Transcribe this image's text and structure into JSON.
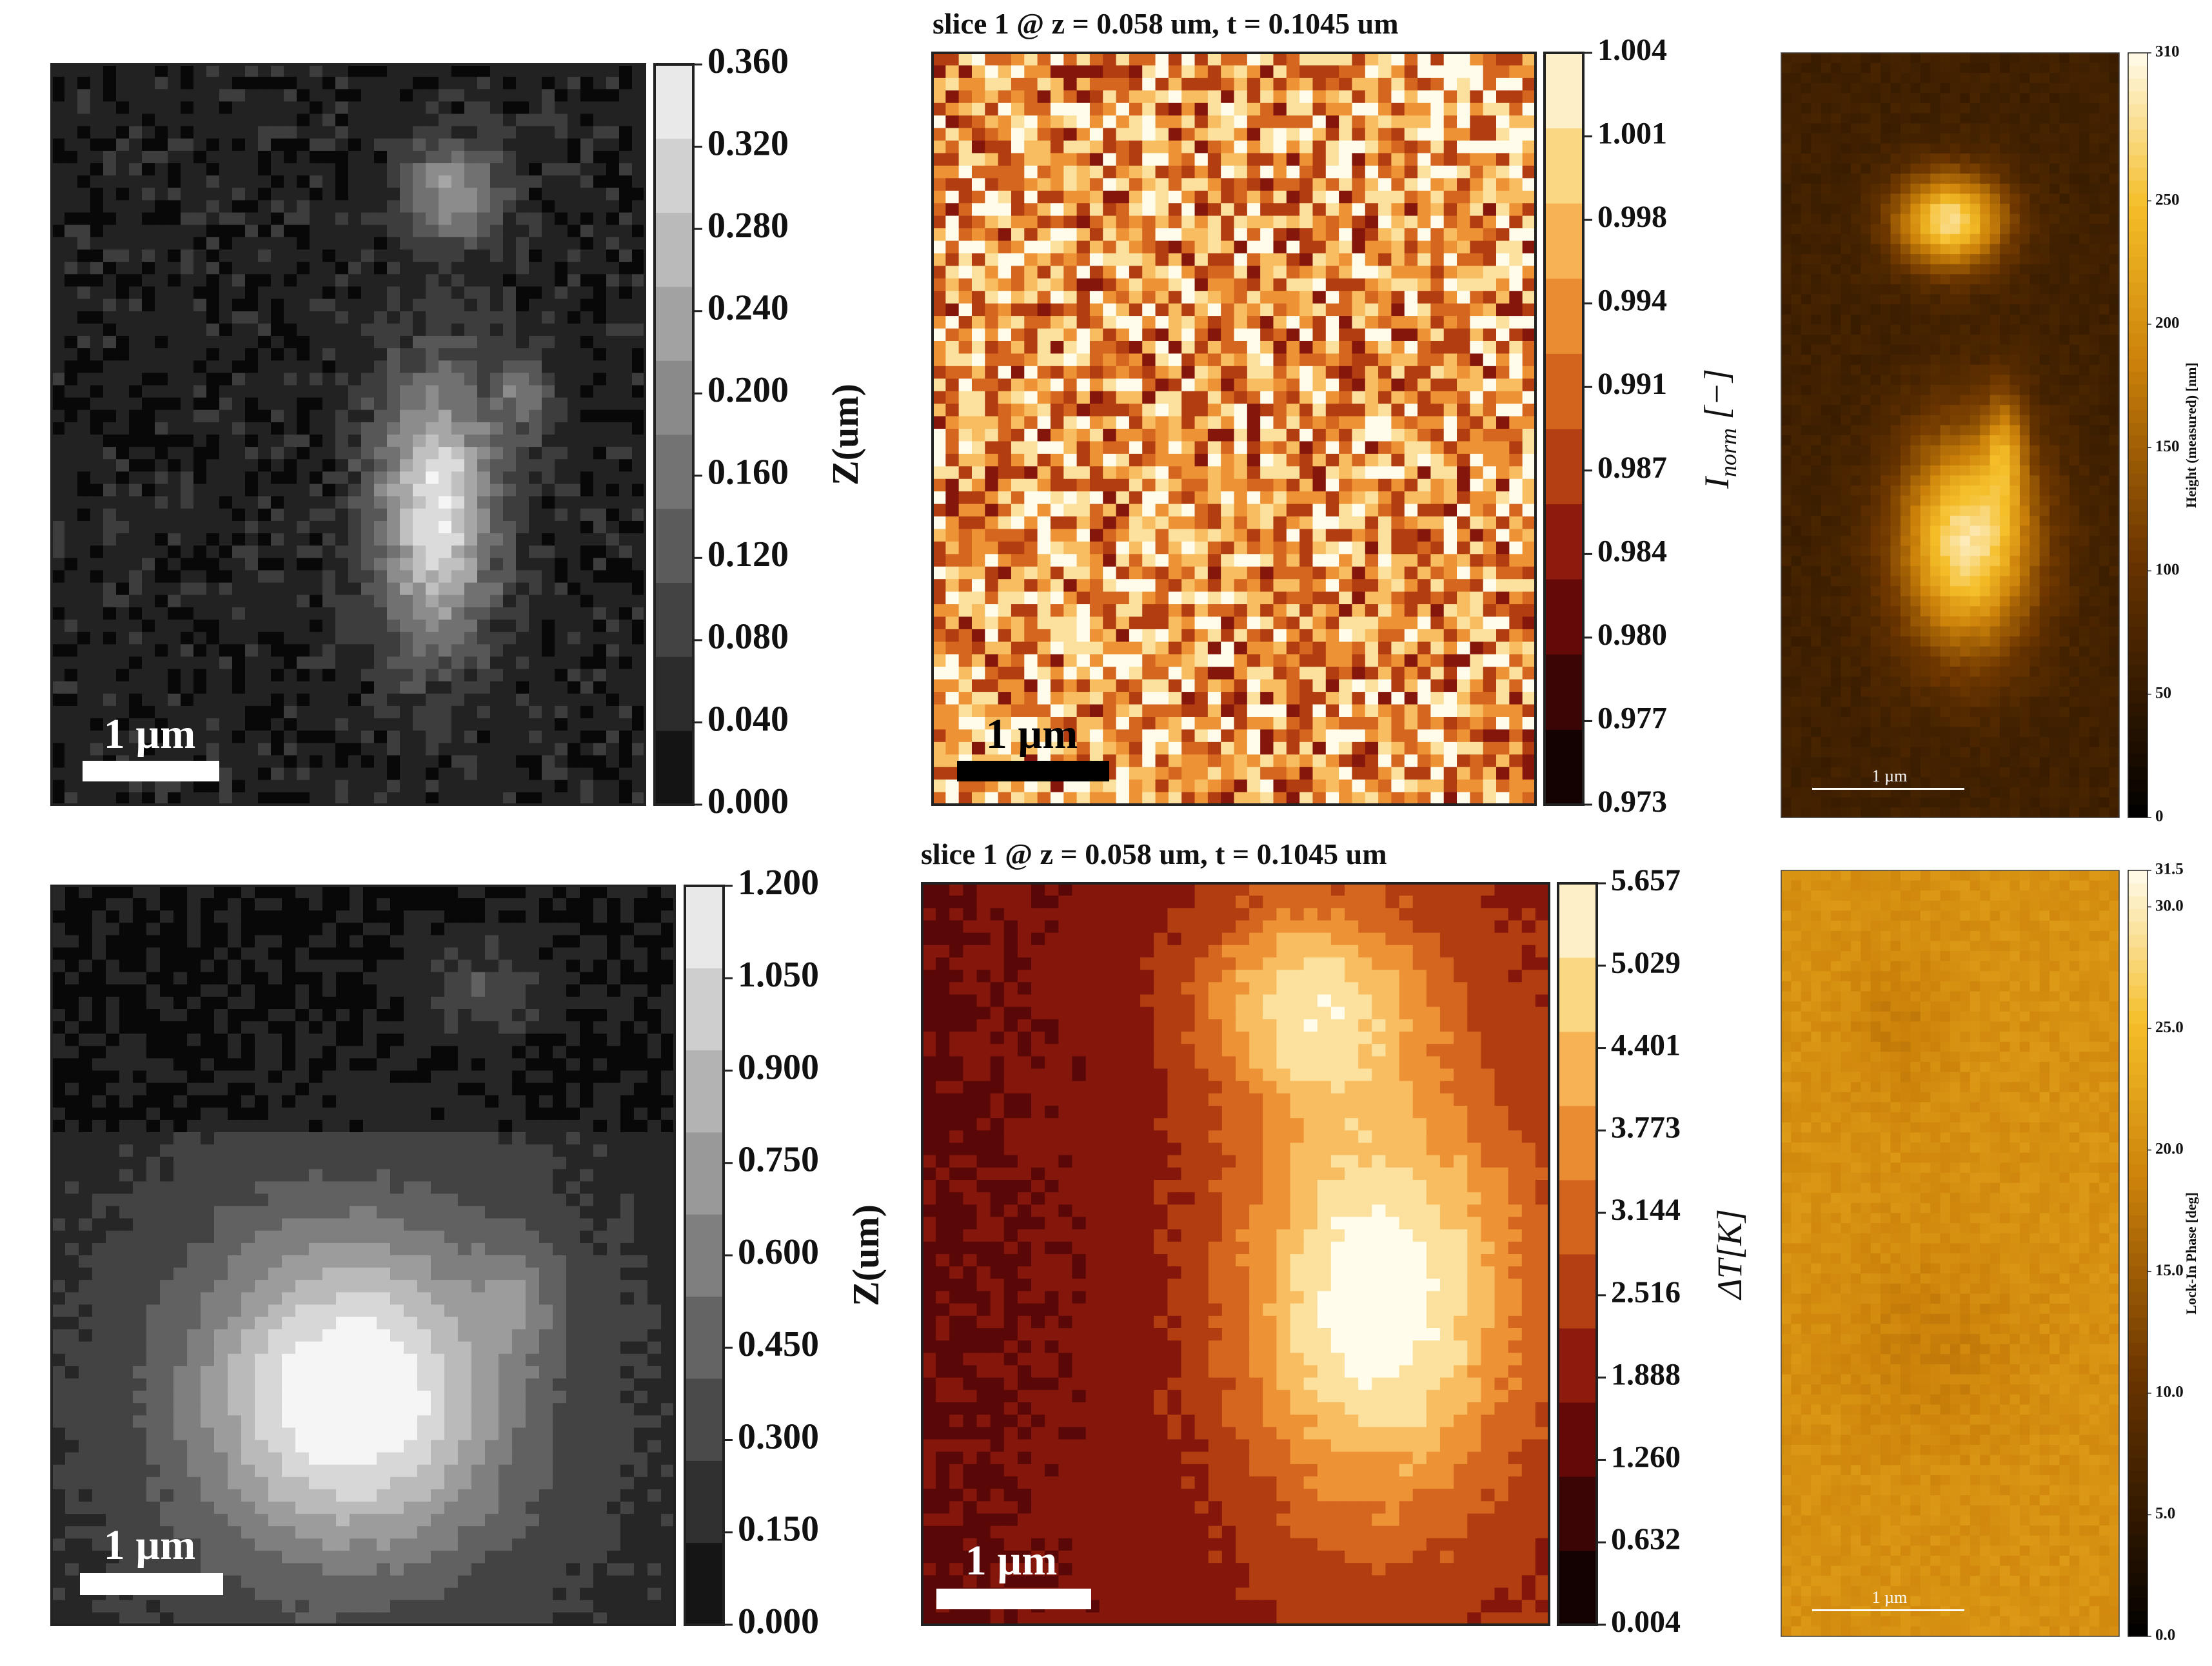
{
  "chart_data": [
    {
      "id": "p1",
      "type": "heatmap",
      "title": "",
      "map": "gray",
      "colorbar": {
        "label": "Z(um)",
        "ticks": [
          "0.000",
          "0.040",
          "0.080",
          "0.120",
          "0.160",
          "0.200",
          "0.240",
          "0.280",
          "0.320",
          "0.360"
        ],
        "range": [
          0.0,
          0.36
        ]
      },
      "scale_bar": "1 µm",
      "scale_bar_color": "#ffffff"
    },
    {
      "id": "p2",
      "type": "heatmap",
      "title": "slice 1 @ z = 0.058 um, t = 0.1045 um",
      "map": "afmhot",
      "colorbar": {
        "label": "I_norm [−]",
        "label_main": "I",
        "label_sub": "norm",
        "label_tail": " [−]",
        "ticks": [
          "0.973",
          "0.977",
          "0.980",
          "0.984",
          "0.987",
          "0.991",
          "0.994",
          "0.998",
          "1.001",
          "1.004"
        ],
        "range": [
          0.973,
          1.006
        ]
      },
      "scale_bar": "1 µm",
      "scale_bar_color": "#000000"
    },
    {
      "id": "p3",
      "type": "heatmap",
      "title": "",
      "map": "gold",
      "colorbar": {
        "label": "Height (measured) [nm]",
        "ticks": [
          "0",
          "50",
          "100",
          "150",
          "200",
          "250",
          "310"
        ],
        "range": [
          0,
          310
        ]
      },
      "scale_bar": "1 µm",
      "scale_bar_color": "#ffffff"
    },
    {
      "id": "p4",
      "type": "heatmap",
      "title": "",
      "map": "gray",
      "colorbar": {
        "label": "Z(um)",
        "ticks": [
          "0.000",
          "0.150",
          "0.300",
          "0.450",
          "0.600",
          "0.750",
          "0.900",
          "1.050",
          "1.200"
        ],
        "range": [
          0.0,
          1.2
        ]
      },
      "scale_bar": "1 µm",
      "scale_bar_color": "#ffffff"
    },
    {
      "id": "p5",
      "type": "heatmap",
      "title": "slice 1 @ z = 0.058 um, t = 0.1045 um",
      "map": "afmhot",
      "colorbar": {
        "label": "ΔT[K]",
        "ticks": [
          "0.004",
          "0.632",
          "1.260",
          "1.888",
          "2.516",
          "3.144",
          "3.773",
          "4.401",
          "5.029",
          "5.657"
        ],
        "range": [
          0.004,
          5.657
        ]
      },
      "scale_bar": "1 µm",
      "scale_bar_color": "#ffffff"
    },
    {
      "id": "p6",
      "type": "heatmap",
      "title": "",
      "map": "gold",
      "colorbar": {
        "label": "Lock-In Phase [deg]",
        "ticks": [
          "0.0",
          "5.0",
          "10.0",
          "15.0",
          "20.0",
          "25.0",
          "30.0",
          "31.5"
        ],
        "range": [
          0.0,
          31.5
        ]
      },
      "scale_bar": "1 µm",
      "scale_bar_color": "#ffffff"
    }
  ]
}
